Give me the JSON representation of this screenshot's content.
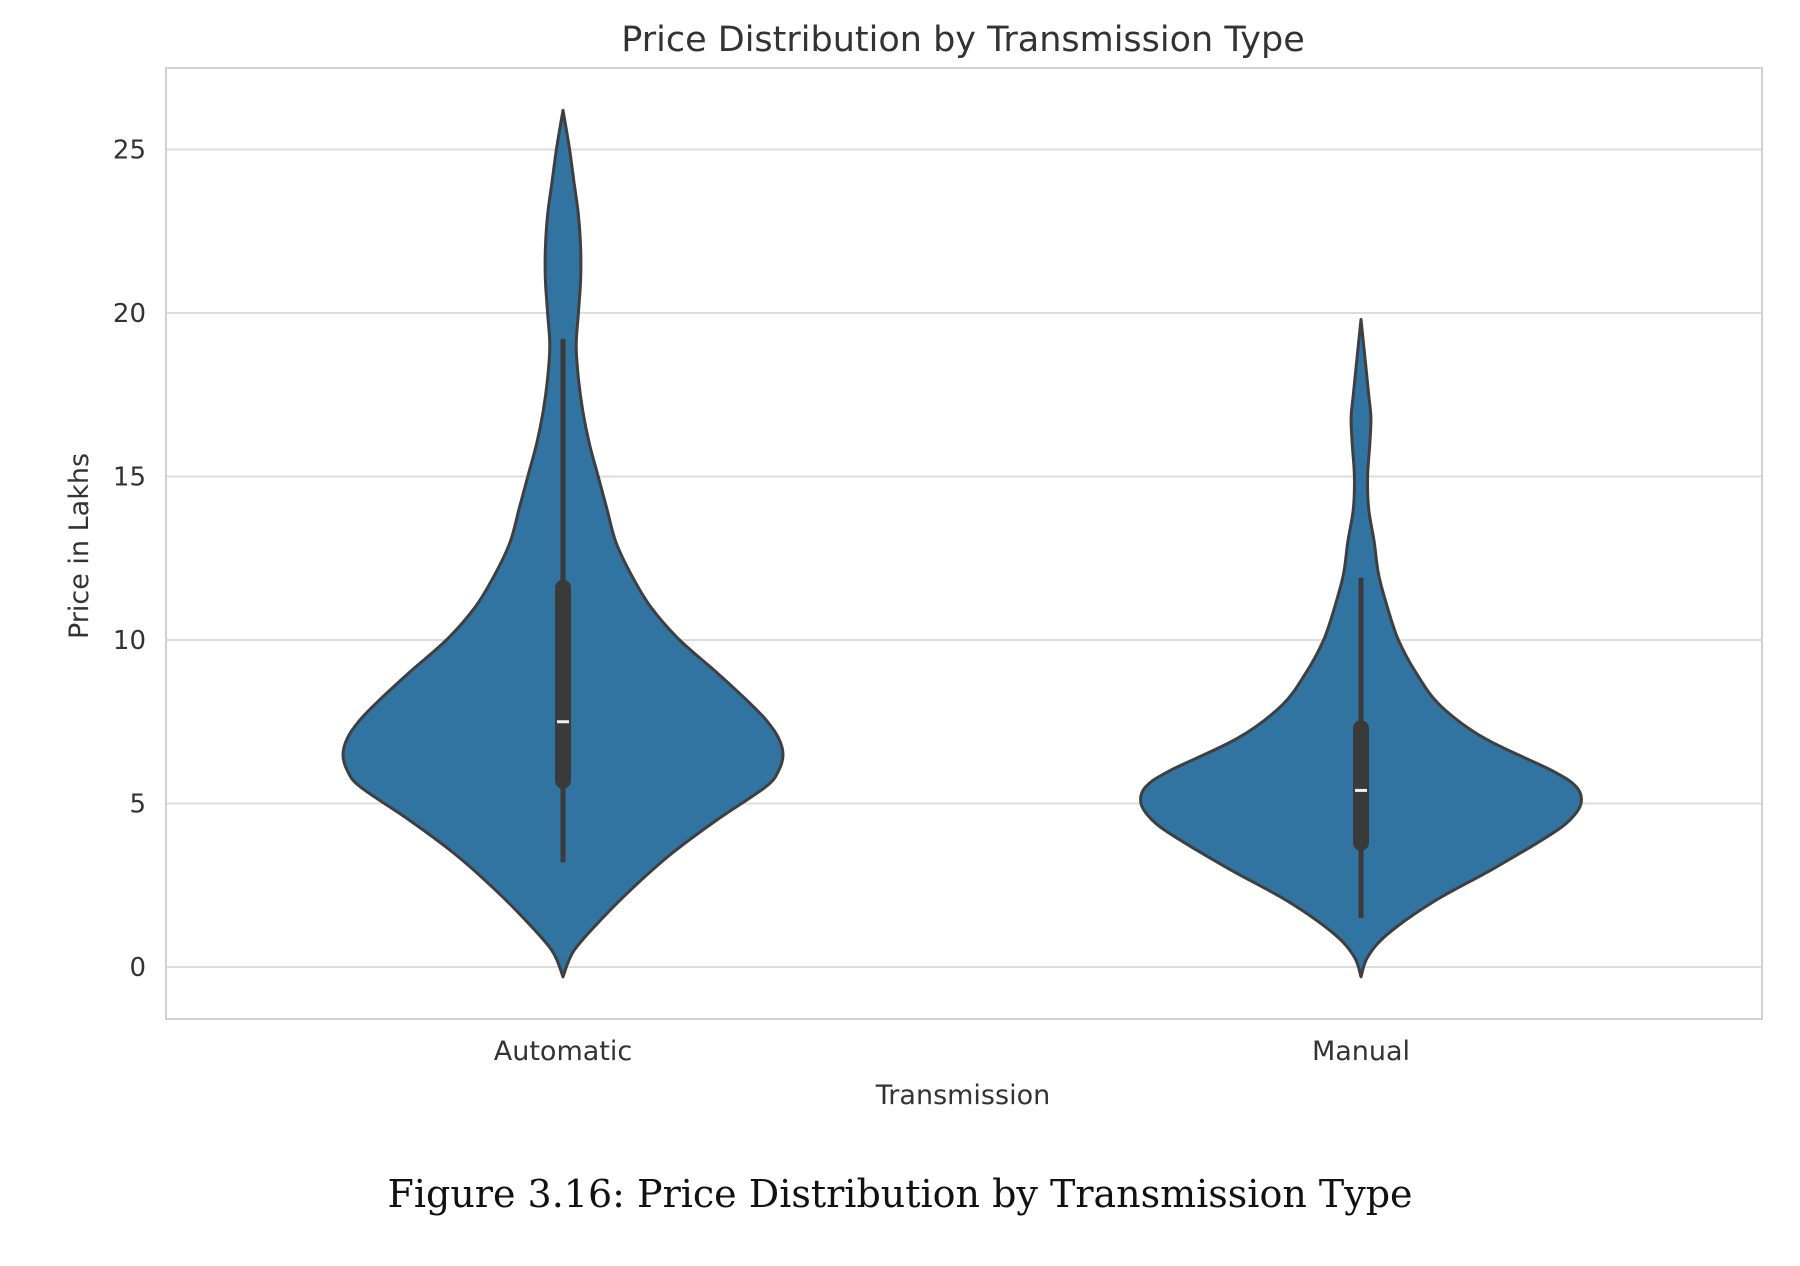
{
  "chart_data": {
    "type": "violin",
    "title": "Price Distribution by Transmission Type",
    "xlabel": "Transmission",
    "ylabel": "Price in Lakhs",
    "categories": [
      "Automatic",
      "Manual"
    ],
    "ylim": [
      -1.5,
      27.5
    ],
    "yticks": [
      0,
      5,
      10,
      15,
      20,
      25
    ],
    "grid": "y",
    "colors": {
      "fill": "#3274a1",
      "edge": "#3f3f3f",
      "box": "#3a3a3a",
      "median": "#f0f0f0",
      "grid": "#dcdcdc",
      "frame": "#d0d0d0"
    },
    "violins": [
      {
        "category": "Automatic",
        "box": {
          "whisker_low": 3.2,
          "q1": 5.7,
          "median": 7.5,
          "q3": 11.6,
          "whisker_high": 19.2
        },
        "range": [
          -0.3,
          26.2
        ],
        "profile": [
          [
            -0.3,
            0.0
          ],
          [
            0.5,
            0.05
          ],
          [
            1.5,
            0.18
          ],
          [
            2.5,
            0.33
          ],
          [
            3.5,
            0.5
          ],
          [
            4.5,
            0.7
          ],
          [
            5.5,
            0.92
          ],
          [
            6.0,
            0.98
          ],
          [
            6.5,
            1.0
          ],
          [
            7.0,
            0.98
          ],
          [
            7.5,
            0.93
          ],
          [
            8.0,
            0.86
          ],
          [
            9.0,
            0.7
          ],
          [
            10.0,
            0.53
          ],
          [
            11.0,
            0.4
          ],
          [
            12.0,
            0.31
          ],
          [
            13.0,
            0.24
          ],
          [
            14.0,
            0.2
          ],
          [
            15.0,
            0.16
          ],
          [
            16.0,
            0.12
          ],
          [
            17.0,
            0.09
          ],
          [
            18.0,
            0.07
          ],
          [
            19.0,
            0.06
          ],
          [
            20.0,
            0.07
          ],
          [
            21.0,
            0.08
          ],
          [
            22.0,
            0.08
          ],
          [
            23.0,
            0.07
          ],
          [
            24.0,
            0.05
          ],
          [
            25.0,
            0.03
          ],
          [
            26.2,
            0.0
          ]
        ]
      },
      {
        "category": "Manual",
        "box": {
          "whisker_low": 1.5,
          "q1": 3.8,
          "median": 5.4,
          "q3": 7.3,
          "whisker_high": 11.9
        },
        "range": [
          -0.3,
          19.8
        ],
        "profile": [
          [
            -0.3,
            0.0
          ],
          [
            0.3,
            0.03
          ],
          [
            1.0,
            0.12
          ],
          [
            2.0,
            0.33
          ],
          [
            3.0,
            0.6
          ],
          [
            4.0,
            0.85
          ],
          [
            4.5,
            0.95
          ],
          [
            5.0,
            1.0
          ],
          [
            5.5,
            0.98
          ],
          [
            6.0,
            0.87
          ],
          [
            7.0,
            0.56
          ],
          [
            8.0,
            0.36
          ],
          [
            9.0,
            0.25
          ],
          [
            10.0,
            0.17
          ],
          [
            11.0,
            0.12
          ],
          [
            12.0,
            0.08
          ],
          [
            13.0,
            0.06
          ],
          [
            14.0,
            0.035
          ],
          [
            15.0,
            0.03
          ],
          [
            16.0,
            0.04
          ],
          [
            16.8,
            0.045
          ],
          [
            17.5,
            0.035
          ],
          [
            18.5,
            0.02
          ],
          [
            19.8,
            0.0
          ]
        ]
      }
    ]
  },
  "figure": {
    "caption": "Figure 3.16: Price Distribution by Transmission Type"
  }
}
